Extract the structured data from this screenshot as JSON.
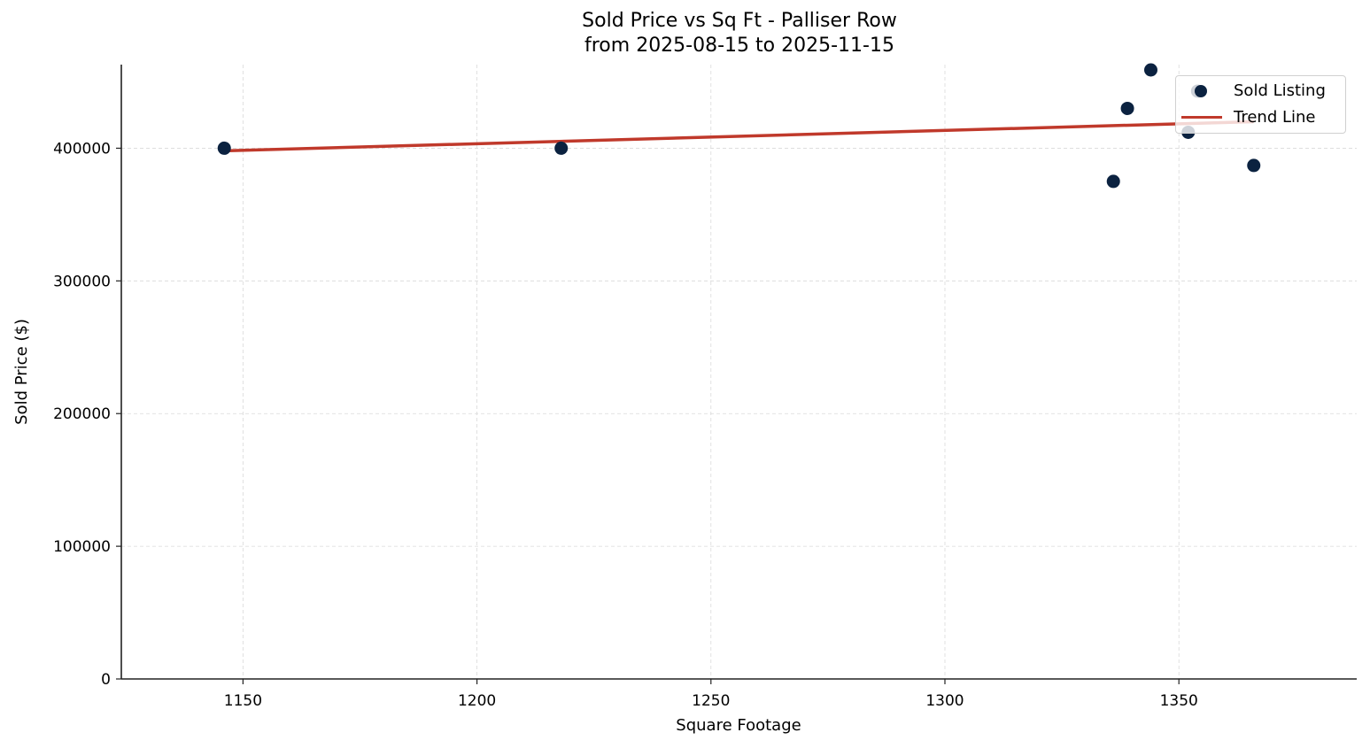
{
  "title": {
    "line1": "Sold Price vs Sq Ft - Palliser Row",
    "line2": "from 2025-08-15 to 2025-11-15"
  },
  "axes": {
    "xlabel": "Square Footage",
    "ylabel": "Sold Price ($)",
    "xticks": [
      "1150",
      "1200",
      "1250",
      "1300",
      "1350"
    ],
    "yticks": [
      "0",
      "100000",
      "200000",
      "300000",
      "400000"
    ]
  },
  "legend": {
    "items": [
      {
        "label": "Sold Listing",
        "type": "marker"
      },
      {
        "label": "Trend Line",
        "type": "line"
      }
    ]
  },
  "colors": {
    "points": "#0b2240",
    "trend": "#c0392b",
    "grid": "#d9d9d9",
    "axis": "#222222"
  },
  "chart_data": {
    "type": "scatter",
    "title": "Sold Price vs Sq Ft - Palliser Row\nfrom 2025-08-15 to 2025-11-15",
    "xlabel": "Square Footage",
    "ylabel": "Sold Price ($)",
    "xlim": [
      1124,
      1388
    ],
    "ylim": [
      0,
      463000
    ],
    "xticks": [
      1150,
      1200,
      1250,
      1300,
      1350
    ],
    "yticks": [
      0,
      100000,
      200000,
      300000,
      400000
    ],
    "grid": true,
    "legend_position": "upper right",
    "series": [
      {
        "name": "Sold Listing",
        "type": "scatter",
        "x": [
          1146,
          1218,
          1336,
          1339,
          1344,
          1352,
          1354,
          1366
        ],
        "y": [
          400000,
          400000,
          375000,
          430000,
          459000,
          412000,
          443000,
          387000
        ]
      },
      {
        "name": "Trend Line",
        "type": "line",
        "x": [
          1146,
          1366
        ],
        "y": [
          398000,
          420000
        ]
      }
    ]
  }
}
